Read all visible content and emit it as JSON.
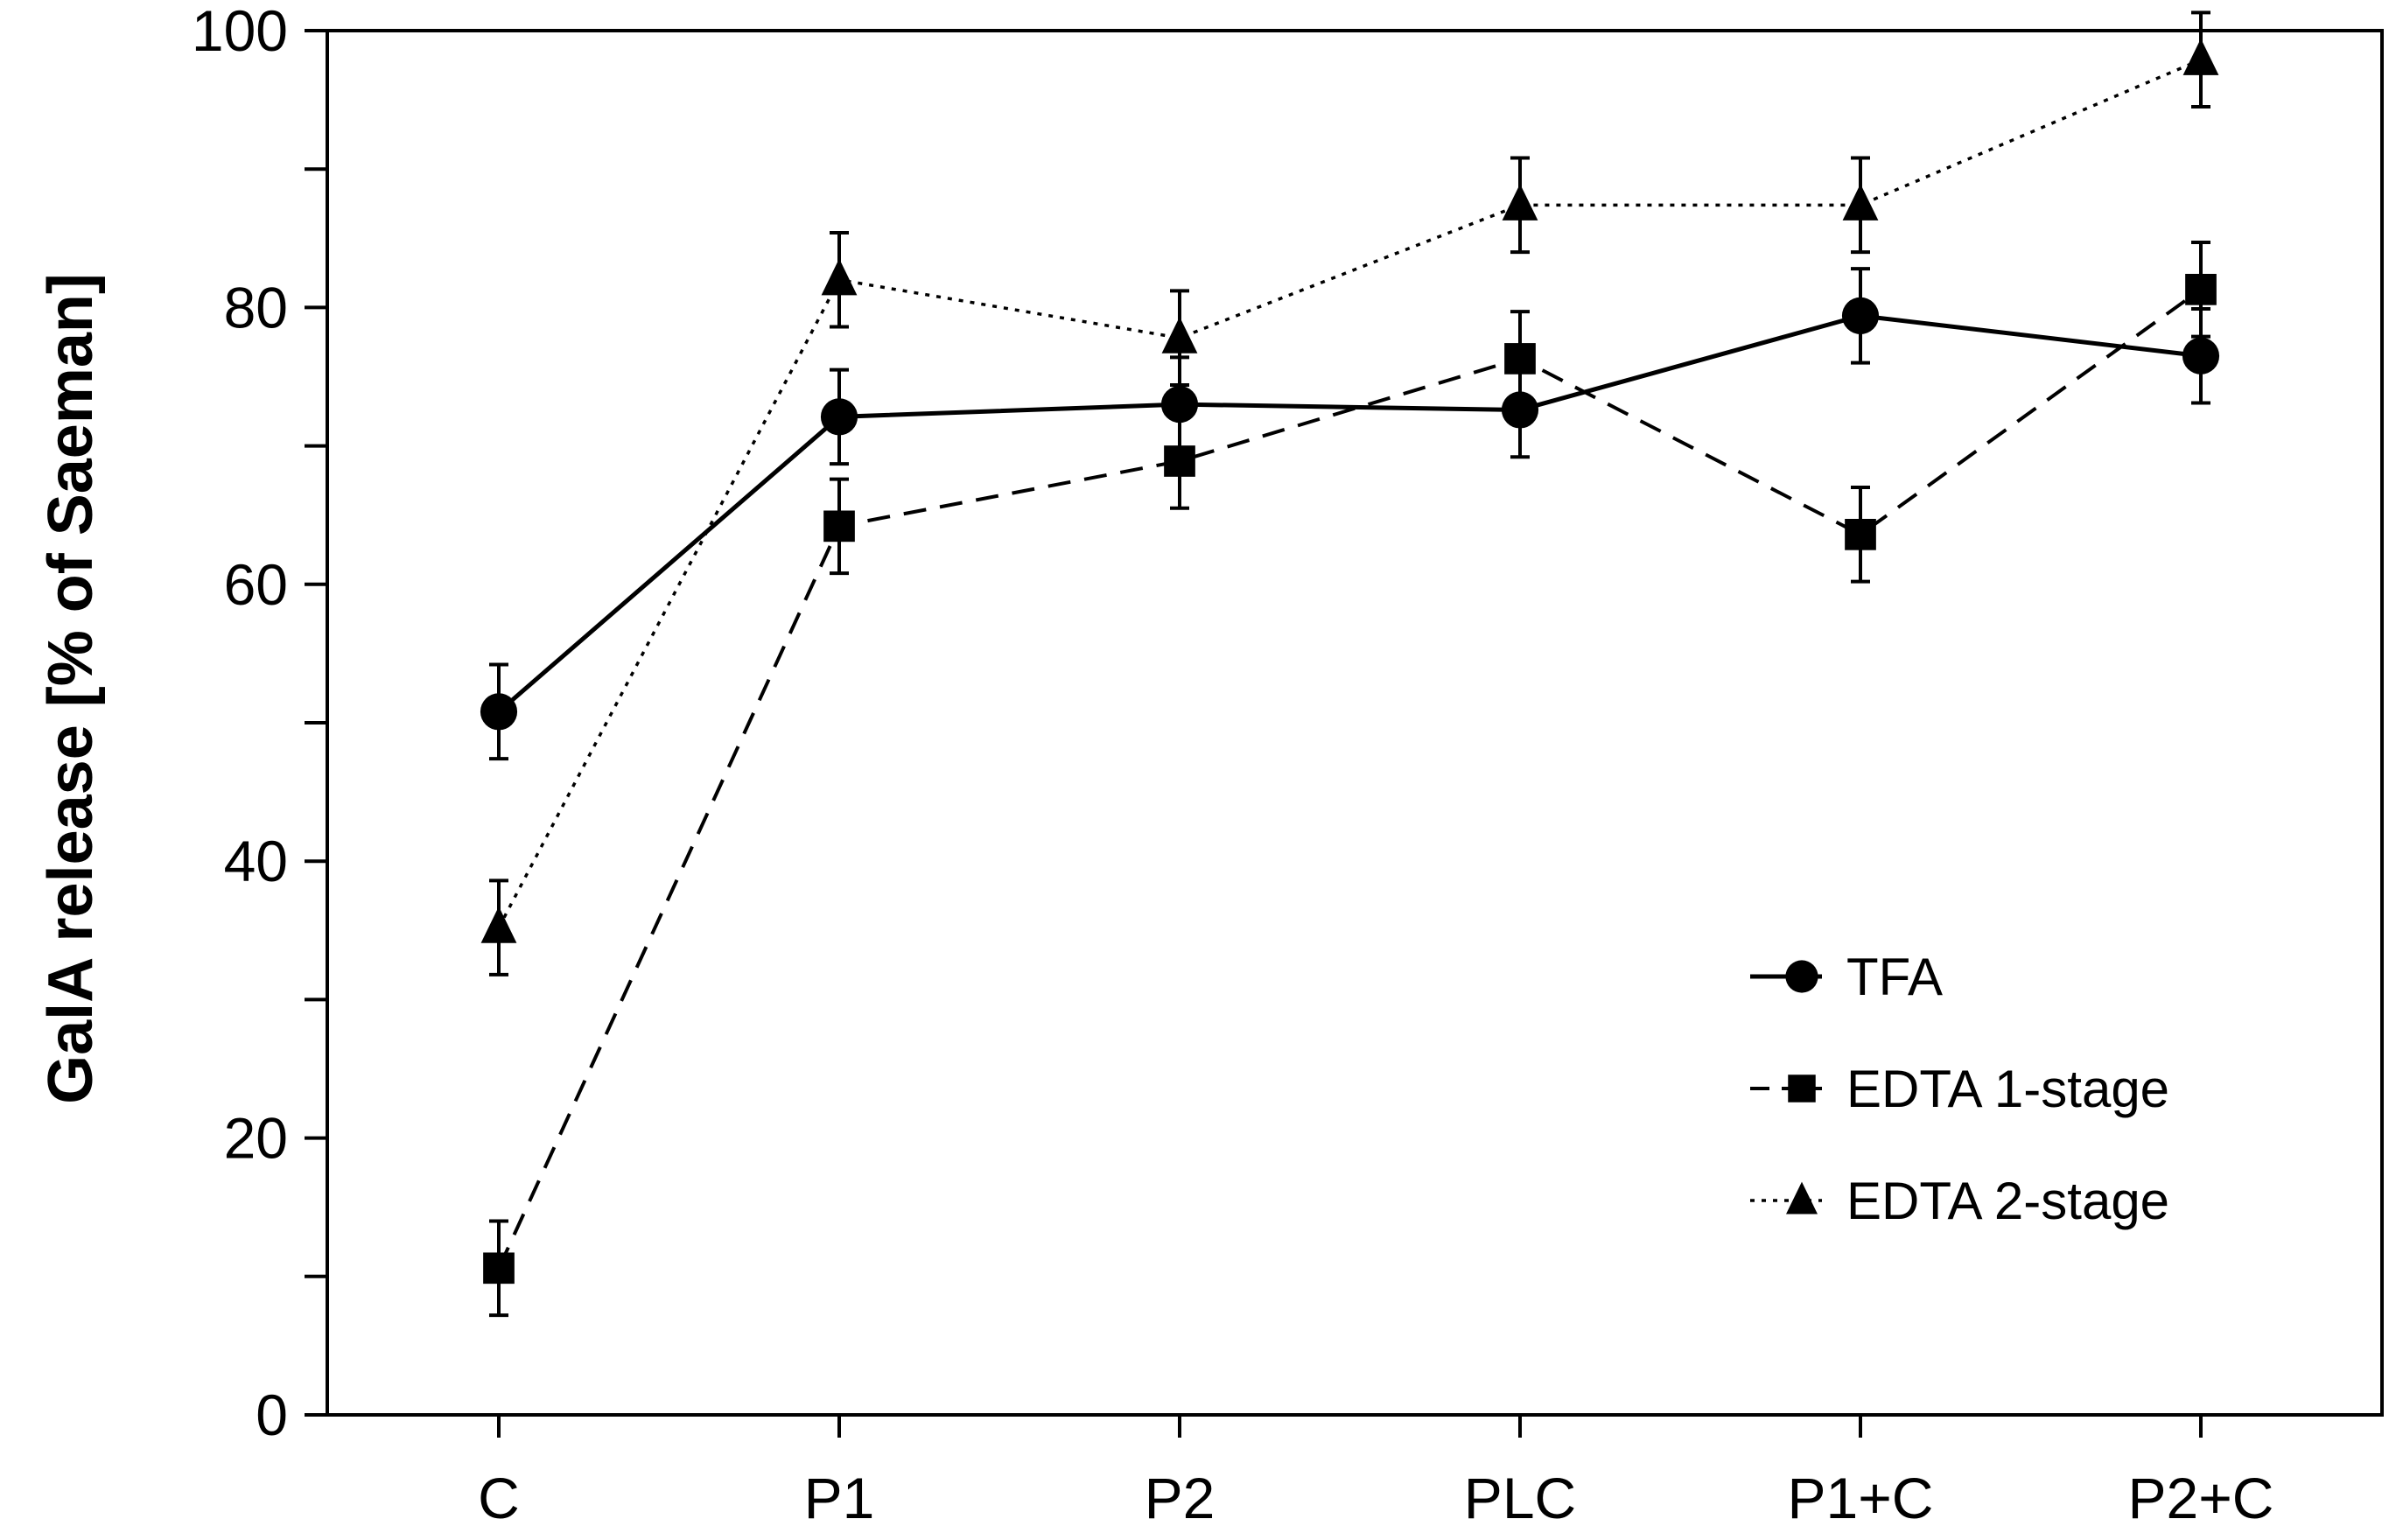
{
  "chart_data": {
    "type": "line",
    "title": "",
    "xlabel": "",
    "ylabel": "GalA release [% of Saeman]",
    "categories": [
      "C",
      "P1",
      "P2",
      "PLC",
      "P1+C",
      "P2+C"
    ],
    "ylim": [
      0,
      100
    ],
    "yticks": [
      0,
      20,
      40,
      60,
      80,
      100
    ],
    "yminor_step": 10,
    "grid": false,
    "legend_position": "lower-right",
    "series": [
      {
        "name": "TFA",
        "line_style": "solid",
        "marker": "circle",
        "values": [
          50.8,
          72.1,
          73.0,
          72.6,
          79.4,
          76.5
        ],
        "errors": [
          3.4,
          3.4,
          3.4,
          3.4,
          3.4,
          3.4
        ]
      },
      {
        "name": "EDTA 1-stage",
        "line_style": "dashed",
        "marker": "square",
        "values": [
          10.6,
          64.2,
          68.9,
          76.3,
          63.6,
          81.3
        ],
        "errors": [
          3.4,
          3.4,
          3.4,
          3.4,
          3.4,
          3.4
        ]
      },
      {
        "name": "EDTA 2-stage",
        "line_style": "dotted",
        "marker": "triangle",
        "values": [
          35.2,
          82.0,
          77.8,
          87.4,
          87.4,
          97.9
        ],
        "errors": [
          3.4,
          3.4,
          3.4,
          3.4,
          3.4,
          3.4
        ]
      }
    ]
  }
}
